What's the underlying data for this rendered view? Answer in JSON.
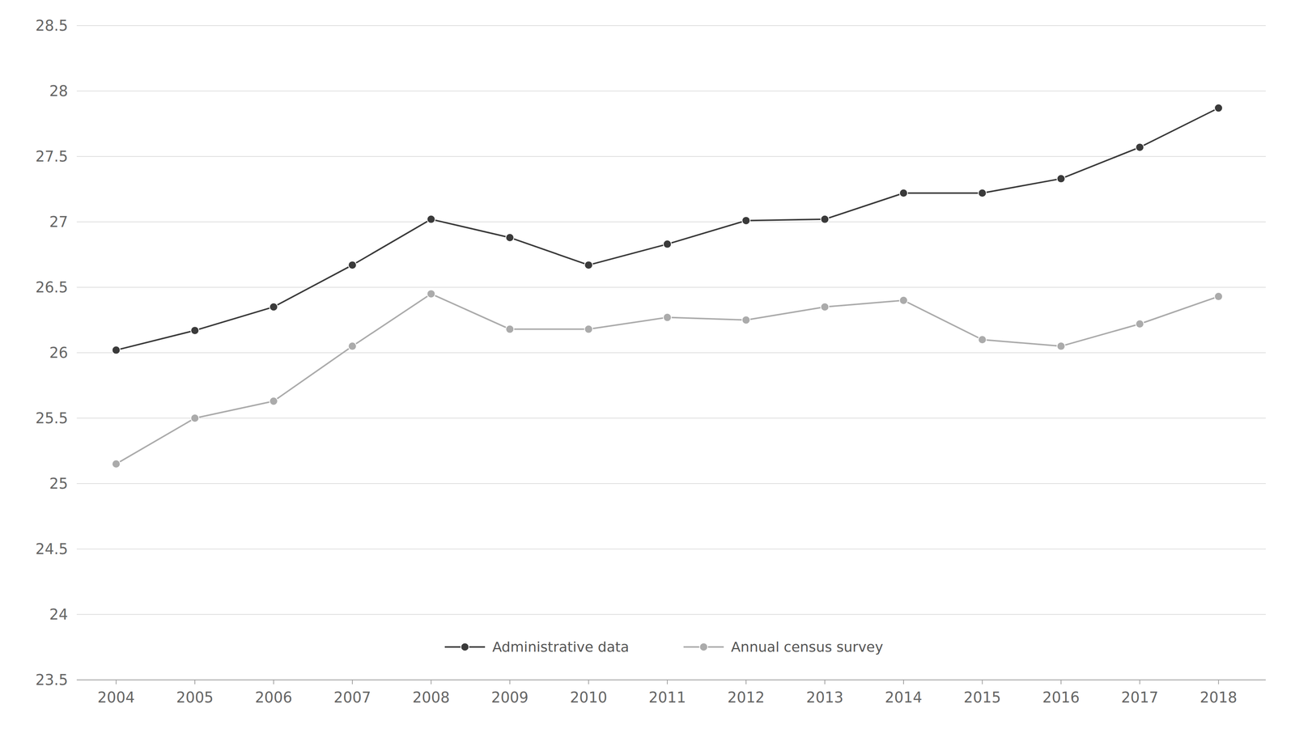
{
  "chart_data": {
    "type": "line",
    "x": [
      2004,
      2005,
      2006,
      2007,
      2008,
      2009,
      2010,
      2011,
      2012,
      2013,
      2014,
      2015,
      2016,
      2017,
      2018
    ],
    "series": [
      {
        "name": "Administrative data",
        "color": "#3a3a3a",
        "values": [
          26.02,
          26.17,
          26.35,
          26.67,
          27.02,
          26.88,
          26.67,
          26.83,
          27.01,
          27.02,
          27.22,
          27.22,
          27.33,
          27.57,
          27.87
        ]
      },
      {
        "name": "Annual census survey",
        "color": "#ababab",
        "values": [
          25.15,
          25.5,
          25.63,
          26.05,
          26.45,
          26.18,
          26.18,
          26.27,
          26.25,
          26.35,
          26.4,
          26.1,
          26.05,
          26.22,
          26.43
        ]
      }
    ],
    "xlim": [
      2003.5,
      2018.6
    ],
    "xticks": [
      2004,
      2005,
      2006,
      2007,
      2008,
      2009,
      2010,
      2011,
      2012,
      2013,
      2014,
      2015,
      2016,
      2017,
      2018
    ],
    "ylim": [
      23.5,
      28.5
    ],
    "yticks": [
      23.5,
      24.0,
      24.5,
      25.0,
      25.5,
      26.0,
      26.5,
      27.0,
      27.5,
      28.0,
      28.5
    ],
    "grid": true,
    "legend": "bottom",
    "marker": "circle"
  }
}
